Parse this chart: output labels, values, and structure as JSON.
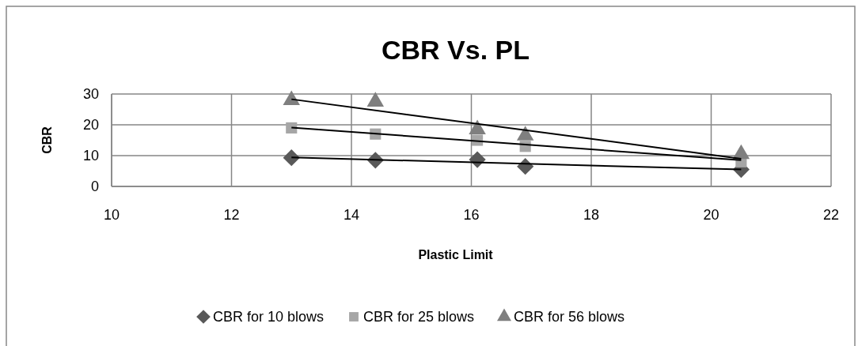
{
  "chart_data": {
    "type": "scatter",
    "title": "CBR Vs. PL",
    "xlabel": "Plastic Limit",
    "ylabel": "CBR",
    "xlim": [
      10,
      22
    ],
    "xticks": [
      10,
      12,
      14,
      16,
      18,
      20,
      22
    ],
    "ylim": [
      0,
      30
    ],
    "yticks": [
      0,
      10,
      20,
      30
    ],
    "grid": true,
    "legend": "bottom",
    "x": [
      13,
      14.4,
      16.1,
      16.9,
      20.5
    ],
    "series": [
      {
        "name": "CBR for 10 blows",
        "color": "#595959",
        "marker": "diamond",
        "values": [
          9.3,
          8.5,
          8.7,
          6.5,
          5.5
        ]
      },
      {
        "name": "CBR for 25 blows",
        "color": "#a6a6a6",
        "marker": "square",
        "values": [
          19,
          17,
          15,
          13,
          8
        ]
      },
      {
        "name": "CBR for 56 blows",
        "color": "#7f7f7f",
        "marker": "triangle",
        "values": [
          28,
          27.5,
          18.5,
          16.5,
          10.5
        ]
      },
      {
        "type": "line",
        "color": "#000000",
        "values": [
          9.4,
          null,
          null,
          null,
          5.5
        ]
      },
      {
        "type": "line",
        "color": "#000000",
        "values": [
          19.1,
          null,
          null,
          null,
          8.5
        ]
      },
      {
        "type": "line",
        "color": "#000000",
        "values": [
          28.3,
          null,
          null,
          null,
          9
        ]
      }
    ]
  }
}
